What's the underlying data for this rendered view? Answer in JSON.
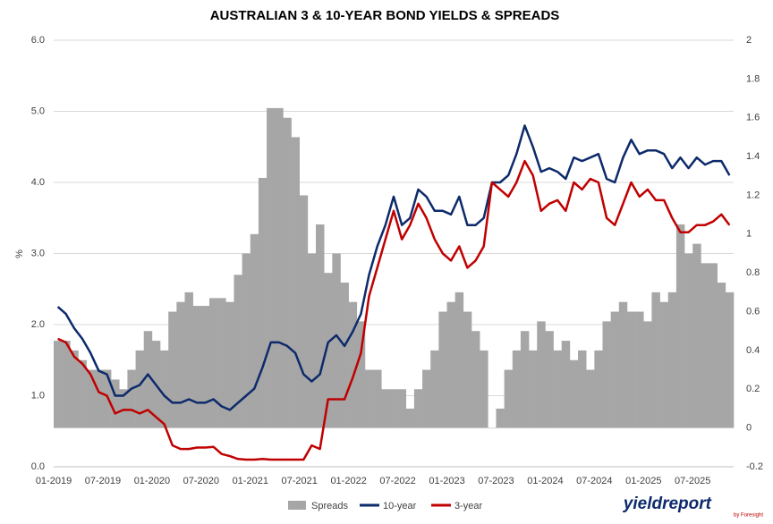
{
  "chart_data": {
    "type": "line",
    "title": "AUSTRALIAN 3 & 10-YEAR BOND YIELDS & SPREADS",
    "y_label": "%",
    "categories": [
      "01-2019",
      null,
      null,
      null,
      null,
      null,
      "07-2019",
      null,
      null,
      null,
      null,
      null,
      "01-2020",
      null,
      null,
      null,
      null,
      null,
      "07-2020",
      null,
      null,
      null,
      null,
      null,
      "01-2021",
      null,
      null,
      null,
      null,
      null,
      "07-2021",
      null,
      null,
      null,
      null,
      null,
      "01-2022",
      null,
      null,
      null,
      null,
      null,
      "07-2022",
      null,
      null,
      null,
      null,
      null,
      "01-2023",
      null,
      null,
      null,
      null,
      null,
      "07-2023",
      null,
      null,
      null,
      null,
      null,
      "01-2024",
      null,
      null,
      null,
      null,
      null,
      "07-2024",
      null,
      null,
      null,
      null,
      null,
      "01-2025",
      null,
      null,
      null,
      null,
      null,
      "07-2025",
      null,
      null,
      null,
      null
    ],
    "series": [
      {
        "name": "Spreads",
        "type": "bar",
        "axis": "y2",
        "color": "#a6a6a6",
        "values": [
          0.45,
          0.45,
          0.4,
          0.35,
          0.3,
          0.3,
          0.3,
          0.25,
          0.2,
          0.3,
          0.4,
          0.5,
          0.45,
          0.4,
          0.6,
          0.65,
          0.7,
          0.63,
          0.63,
          0.67,
          0.67,
          0.65,
          0.79,
          0.9,
          1.0,
          1.29,
          1.65,
          1.65,
          1.6,
          1.5,
          1.2,
          0.9,
          1.05,
          0.8,
          0.9,
          0.75,
          0.65,
          0.55,
          0.3,
          0.3,
          0.2,
          0.2,
          0.2,
          0.1,
          0.2,
          0.3,
          0.4,
          0.6,
          0.65,
          0.7,
          0.6,
          0.5,
          0.4,
          0.0,
          0.1,
          0.3,
          0.4,
          0.5,
          0.4,
          0.55,
          0.5,
          0.4,
          0.45,
          0.35,
          0.4,
          0.3,
          0.4,
          0.55,
          0.6,
          0.65,
          0.6,
          0.6,
          0.55,
          0.7,
          0.65,
          0.7,
          1.05,
          0.9,
          0.95,
          0.85,
          0.85,
          0.75,
          0.7
        ]
      },
      {
        "name": "10-year",
        "type": "line",
        "color": "#0d2a6b",
        "values": [
          2.25,
          2.15,
          1.95,
          1.8,
          1.6,
          1.35,
          1.3,
          1.0,
          1.0,
          1.1,
          1.15,
          1.3,
          1.15,
          1.0,
          0.9,
          0.9,
          0.95,
          0.9,
          0.9,
          0.95,
          0.85,
          0.8,
          0.9,
          1.0,
          1.1,
          1.4,
          1.75,
          1.75,
          1.7,
          1.6,
          1.3,
          1.2,
          1.3,
          1.75,
          1.85,
          1.7,
          1.9,
          2.15,
          2.7,
          3.1,
          3.4,
          3.8,
          3.4,
          3.5,
          3.9,
          3.8,
          3.6,
          3.6,
          3.55,
          3.8,
          3.4,
          3.4,
          3.5,
          4.0,
          4.0,
          4.1,
          4.4,
          4.8,
          4.5,
          4.15,
          4.2,
          4.15,
          4.05,
          4.35,
          4.3,
          4.35,
          4.4,
          4.05,
          4.0,
          4.35,
          4.6,
          4.4,
          4.45,
          4.45,
          4.4,
          4.2,
          4.35,
          4.2,
          4.35,
          4.25,
          4.3,
          4.3,
          4.1
        ]
      },
      {
        "name": "3-year",
        "type": "line",
        "color": "#c00000",
        "values": [
          1.8,
          1.75,
          1.55,
          1.45,
          1.3,
          1.05,
          1.0,
          0.75,
          0.8,
          0.8,
          0.75,
          0.8,
          0.7,
          0.6,
          0.3,
          0.25,
          0.25,
          0.27,
          0.27,
          0.28,
          0.18,
          0.15,
          0.11,
          0.1,
          0.1,
          0.11,
          0.1,
          0.1,
          0.1,
          0.1,
          0.1,
          0.3,
          0.25,
          0.95,
          0.95,
          0.95,
          1.25,
          1.6,
          2.4,
          2.8,
          3.2,
          3.6,
          3.2,
          3.4,
          3.7,
          3.5,
          3.2,
          3.0,
          2.9,
          3.1,
          2.8,
          2.9,
          3.1,
          4.0,
          3.9,
          3.8,
          4.0,
          4.3,
          4.1,
          3.6,
          3.7,
          3.75,
          3.6,
          4.0,
          3.9,
          4.05,
          4.0,
          3.5,
          3.4,
          3.7,
          4.0,
          3.8,
          3.9,
          3.75,
          3.75,
          3.5,
          3.3,
          3.3,
          3.4,
          3.4,
          3.45,
          3.55,
          3.4
        ]
      }
    ],
    "ylim": [
      0,
      6
    ],
    "yticks": [
      {
        "value": 0,
        "label": "0.0"
      },
      {
        "value": 1,
        "label": "1.0"
      },
      {
        "value": 2,
        "label": "2.0"
      },
      {
        "value": 3,
        "label": "3.0"
      },
      {
        "value": 4,
        "label": "4.0"
      },
      {
        "value": 5,
        "label": "5.0"
      },
      {
        "value": 6,
        "label": "6.0"
      }
    ],
    "y2lim": [
      -0.2,
      2
    ],
    "y2ticks": [
      -0.2,
      0,
      0.2,
      0.4,
      0.6,
      0.8,
      1,
      1.2,
      1.4,
      1.6,
      1.8,
      2
    ],
    "grid": true,
    "legend": "bottom"
  },
  "branding": {
    "logo": "yieldreport",
    "tagline": "by Foresight"
  }
}
